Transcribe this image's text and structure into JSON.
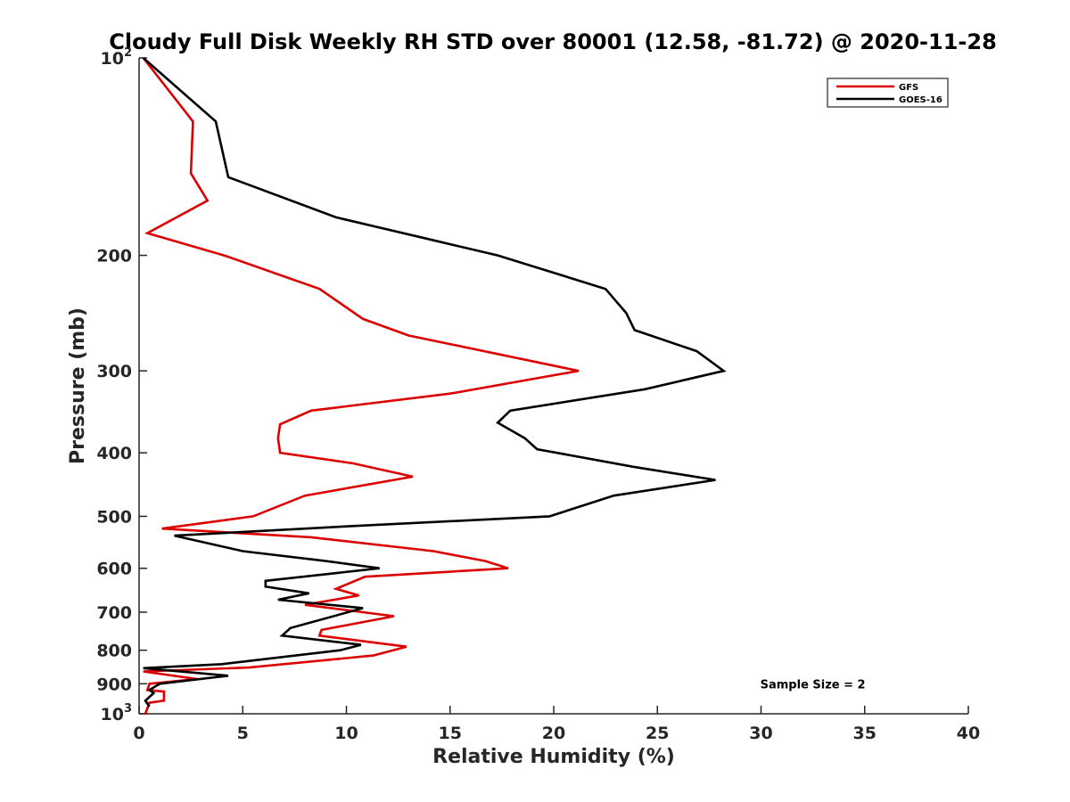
{
  "chart_data": {
    "type": "line",
    "title": "Cloudy Full Disk Weekly RH STD over 80001 (12.58, -81.72) @ 2020-11-28",
    "xlabel": "Relative Humidity (%)",
    "ylabel": "Pressure (mb)",
    "xlim": [
      0,
      40
    ],
    "ylim": [
      100,
      1000
    ],
    "y_scale": "log",
    "y_reversed": true,
    "grid": false,
    "legend_position": "top-right",
    "x_ticks": [
      "0",
      "5",
      "10",
      "15",
      "20",
      "25",
      "30",
      "35",
      "40"
    ],
    "y_ticks": [
      {
        "value": 100,
        "base": "10",
        "exp": "2"
      },
      {
        "value": 200,
        "label": "200"
      },
      {
        "value": 300,
        "label": "300"
      },
      {
        "value": 400,
        "label": "400"
      },
      {
        "value": 500,
        "label": "500"
      },
      {
        "value": 600,
        "label": "600"
      },
      {
        "value": 700,
        "label": "700"
      },
      {
        "value": 800,
        "label": "800"
      },
      {
        "value": 900,
        "label": "900"
      },
      {
        "value": 1000,
        "base": "10",
        "exp": "3"
      }
    ],
    "series": [
      {
        "name": "GFS",
        "color": "#dd0000",
        "points": [
          [
            0.2,
            100
          ],
          [
            2.6,
            125
          ],
          [
            2.5,
            150
          ],
          [
            3.3,
            165
          ],
          [
            0.4,
            185
          ],
          [
            4.1,
            200
          ],
          [
            8.7,
            225
          ],
          [
            10.8,
            250
          ],
          [
            13.0,
            265
          ],
          [
            21.2,
            300
          ],
          [
            15.0,
            325
          ],
          [
            8.3,
            345
          ],
          [
            6.8,
            362
          ],
          [
            6.7,
            380
          ],
          [
            6.8,
            400
          ],
          [
            10.3,
            415
          ],
          [
            13.2,
            435
          ],
          [
            8.0,
            465
          ],
          [
            5.5,
            500
          ],
          [
            1.1,
            522
          ],
          [
            8.3,
            538
          ],
          [
            14.2,
            565
          ],
          [
            16.7,
            585
          ],
          [
            17.8,
            600
          ],
          [
            10.9,
            618
          ],
          [
            9.5,
            645
          ],
          [
            10.6,
            660
          ],
          [
            8.0,
            682
          ],
          [
            12.3,
            710
          ],
          [
            8.8,
            745
          ],
          [
            8.7,
            760
          ],
          [
            12.9,
            790
          ],
          [
            11.3,
            815
          ],
          [
            5.3,
            850
          ],
          [
            0.2,
            862
          ],
          [
            2.8,
            885
          ],
          [
            0.5,
            900
          ],
          [
            0.4,
            920
          ],
          [
            1.2,
            925
          ],
          [
            1.2,
            955
          ],
          [
            0.5,
            962
          ],
          [
            0.3,
            1000
          ]
        ]
      },
      {
        "name": "GOES-16",
        "color": "#000000",
        "points": [
          [
            0.2,
            100
          ],
          [
            3.7,
            125
          ],
          [
            4.3,
            152
          ],
          [
            9.5,
            175
          ],
          [
            14.3,
            190
          ],
          [
            17.3,
            200
          ],
          [
            22.5,
            225
          ],
          [
            23.5,
            245
          ],
          [
            23.9,
            260
          ],
          [
            26.9,
            280
          ],
          [
            28.2,
            300
          ],
          [
            24.4,
            320
          ],
          [
            17.9,
            345
          ],
          [
            17.3,
            360
          ],
          [
            18.6,
            380
          ],
          [
            19.2,
            395
          ],
          [
            23.8,
            420
          ],
          [
            27.8,
            440
          ],
          [
            22.9,
            465
          ],
          [
            19.8,
            500
          ],
          [
            10.0,
            518
          ],
          [
            1.7,
            535
          ],
          [
            5.0,
            565
          ],
          [
            9.0,
            585
          ],
          [
            11.6,
            600
          ],
          [
            6.1,
            627
          ],
          [
            6.1,
            640
          ],
          [
            8.2,
            655
          ],
          [
            6.7,
            670
          ],
          [
            10.8,
            690
          ],
          [
            7.3,
            740
          ],
          [
            6.9,
            760
          ],
          [
            10.7,
            785
          ],
          [
            9.7,
            800
          ],
          [
            4.0,
            840
          ],
          [
            0.2,
            852
          ],
          [
            4.3,
            875
          ],
          [
            1.0,
            900
          ],
          [
            0.5,
            920
          ],
          [
            0.7,
            930
          ],
          [
            0.3,
            955
          ],
          [
            0.5,
            975
          ]
        ]
      }
    ],
    "annotations": [
      {
        "text": "Sample Size = 2",
        "x": 32.5,
        "y": 900
      }
    ]
  }
}
